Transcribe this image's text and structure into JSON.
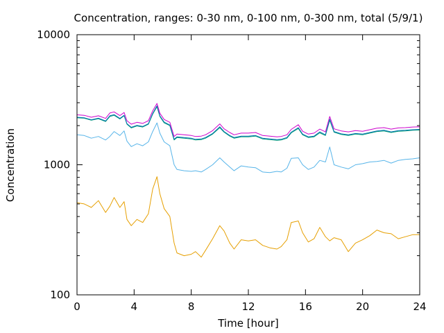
{
  "chart_data": {
    "type": "line",
    "title": "Concentration, ranges: 0-30 nm, 0-100 nm, 0-300 nm, total (5/9/1)",
    "xlabel": "Time [hour]",
    "ylabel": "Concentration",
    "xlim": [
      0,
      24
    ],
    "ylim": [
      100,
      10000
    ],
    "yscale": "log",
    "grid": false,
    "legend": "none",
    "xticks": [
      "0",
      "4",
      "8",
      "12",
      "16",
      "20",
      "24"
    ],
    "yticks": [
      "100",
      "1000",
      "10000"
    ],
    "x": [
      0,
      0.5,
      1,
      1.5,
      2,
      2.3,
      2.6,
      3,
      3.3,
      3.5,
      3.8,
      4.2,
      4.6,
      5,
      5.3,
      5.6,
      5.8,
      6.1,
      6.5,
      6.8,
      7,
      7.5,
      8,
      8.3,
      8.7,
      9,
      9.5,
      10,
      10.3,
      10.7,
      11,
      11.5,
      12,
      12.5,
      13,
      13.5,
      14,
      14.3,
      14.7,
      15,
      15.5,
      15.8,
      16.2,
      16.6,
      17,
      17.4,
      17.7,
      18,
      18.5,
      19,
      19.5,
      20,
      20.5,
      21,
      21.5,
      22,
      22.5,
      23,
      23.5,
      24
    ],
    "series": [
      {
        "color": "#e69f00",
        "values": [
          510,
          500,
          470,
          530,
          430,
          480,
          560,
          470,
          520,
          380,
          340,
          380,
          360,
          420,
          650,
          810,
          600,
          460,
          400,
          250,
          210,
          200,
          205,
          215,
          195,
          220,
          270,
          340,
          310,
          250,
          225,
          265,
          260,
          265,
          240,
          230,
          225,
          235,
          265,
          360,
          370,
          300,
          255,
          270,
          330,
          280,
          260,
          275,
          265,
          215,
          250,
          265,
          285,
          315,
          300,
          295,
          270,
          280,
          290,
          290
        ]
      },
      {
        "color": "#56b4e9",
        "values": [
          1700,
          1680,
          1600,
          1650,
          1550,
          1650,
          1800,
          1680,
          1820,
          1520,
          1380,
          1450,
          1400,
          1500,
          1800,
          2100,
          1750,
          1500,
          1400,
          1000,
          920,
          900,
          890,
          900,
          880,
          920,
          1000,
          1130,
          1050,
          960,
          900,
          980,
          960,
          950,
          880,
          870,
          890,
          880,
          940,
          1120,
          1130,
          1000,
          920,
          960,
          1080,
          1050,
          1370,
          1000,
          960,
          930,
          1000,
          1020,
          1050,
          1060,
          1080,
          1030,
          1080,
          1100,
          1110,
          1130
        ]
      },
      {
        "color": "#009e73",
        "values": [
          2300,
          2280,
          2200,
          2260,
          2150,
          2350,
          2400,
          2250,
          2380,
          2050,
          1920,
          1990,
          1950,
          2050,
          2450,
          2800,
          2350,
          2100,
          2000,
          1550,
          1620,
          1600,
          1580,
          1550,
          1560,
          1600,
          1720,
          1930,
          1780,
          1660,
          1600,
          1640,
          1640,
          1660,
          1580,
          1560,
          1540,
          1550,
          1600,
          1760,
          1900,
          1700,
          1620,
          1640,
          1760,
          1680,
          2200,
          1780,
          1710,
          1680,
          1720,
          1700,
          1750,
          1800,
          1820,
          1770,
          1810,
          1820,
          1840,
          1850
        ]
      },
      {
        "color": "#0072b2",
        "values": [
          2320,
          2300,
          2220,
          2280,
          2170,
          2380,
          2430,
          2270,
          2400,
          2070,
          1940,
          2010,
          1970,
          2070,
          2480,
          2840,
          2380,
          2130,
          2020,
          1570,
          1640,
          1620,
          1600,
          1570,
          1580,
          1620,
          1740,
          1960,
          1800,
          1680,
          1620,
          1660,
          1660,
          1680,
          1600,
          1580,
          1560,
          1570,
          1620,
          1780,
          1930,
          1720,
          1640,
          1660,
          1790,
          1700,
          2240,
          1800,
          1730,
          1700,
          1740,
          1720,
          1770,
          1820,
          1840,
          1790,
          1830,
          1840,
          1860,
          1870
        ]
      },
      {
        "color": "#cc00cc",
        "values": [
          2420,
          2400,
          2320,
          2380,
          2270,
          2500,
          2550,
          2390,
          2520,
          2180,
          2050,
          2120,
          2080,
          2180,
          2600,
          2960,
          2490,
          2230,
          2120,
          1650,
          1720,
          1700,
          1680,
          1650,
          1660,
          1700,
          1830,
          2060,
          1890,
          1770,
          1700,
          1750,
          1750,
          1770,
          1680,
          1660,
          1640,
          1650,
          1700,
          1870,
          2030,
          1810,
          1720,
          1750,
          1880,
          1790,
          2350,
          1890,
          1820,
          1790,
          1830,
          1810,
          1860,
          1910,
          1930,
          1880,
          1920,
          1930,
          1950,
          1960
        ]
      }
    ]
  }
}
